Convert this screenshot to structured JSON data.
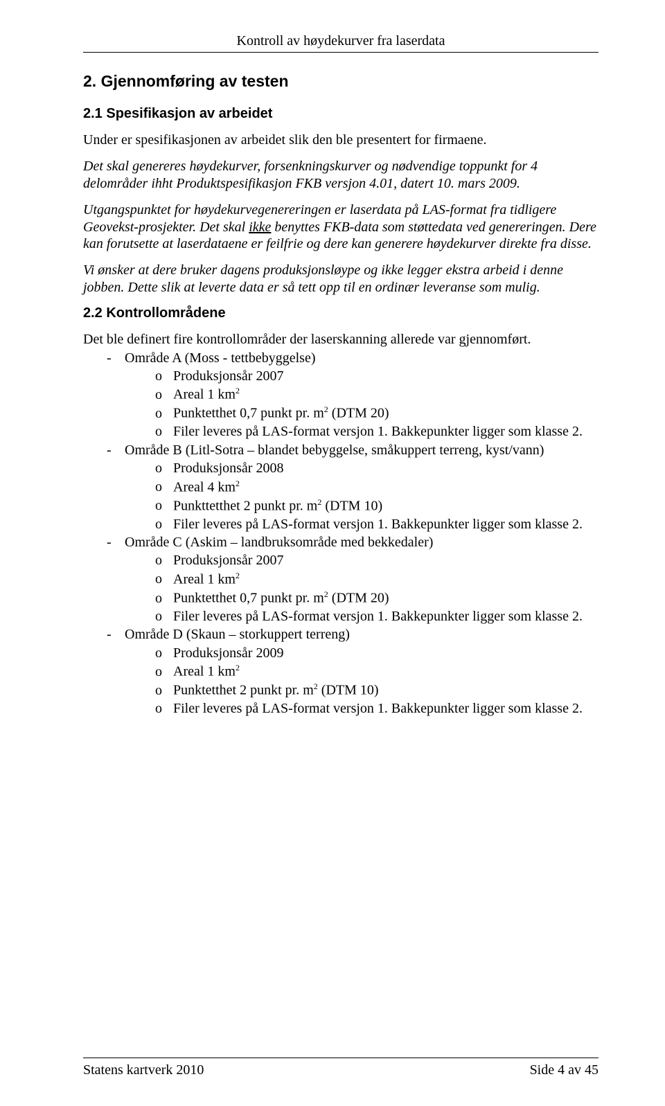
{
  "header": {
    "title": "Kontroll av høydekurver fra laserdata"
  },
  "section2": {
    "heading": "2. Gjennomføring av testen",
    "sub1": {
      "heading": "2.1 Spesifikasjon av arbeidet",
      "intro": "Under er spesifikasjonen av arbeidet slik den ble presentert for firmaene.",
      "p1": "Det skal genereres høydekurver, forsenkningskurver og nødvendige toppunkt for 4 delområder ihht Produktspesifikasjon FKB versjon 4.01, datert 10. mars 2009.",
      "p2a": "Utgangspunktet for høydekurvegenereringen er laserdata på LAS-format fra tidligere Geovekst-prosjekter. Det skal ",
      "p2_ikke": "ikke",
      "p2b": " benyttes FKB-data som støttedata ved genereringen. Dere kan forutsette at laserdataene er feilfrie og dere kan generere høydekurver direkte fra disse.",
      "p3": "Vi ønsker at dere bruker dagens produksjonsløype og ikke legger ekstra arbeid i denne jobben. Dette slik at leverte data er så tett opp til en ordinær leveranse som mulig."
    },
    "sub2": {
      "heading": "2.2 Kontrollområdene",
      "intro": "Det ble definert fire kontrollområder der laserskanning allerede var gjennomført.",
      "areas": [
        {
          "title": "Område A (Moss - tettbebyggelse)",
          "items": [
            {
              "pre": "Produksjonsår 2007",
              "sup": ""
            },
            {
              "pre": "Areal 1 km",
              "sup": "2"
            },
            {
              "pre": "Punktetthet 0,7 punkt pr. m",
              "sup": "2",
              "post": " (DTM 20)"
            },
            {
              "pre": "Filer leveres på LAS-format versjon 1. Bakkepunkter ligger som klasse 2.",
              "sup": ""
            }
          ]
        },
        {
          "title": "Område B (Litl-Sotra – blandet bebyggelse, småkuppert terreng, kyst/vann)",
          "items": [
            {
              "pre": "Produksjonsår 2008",
              "sup": ""
            },
            {
              "pre": "Areal 4 km",
              "sup": "2"
            },
            {
              "pre": "Punkttetthet 2 punkt pr. m",
              "sup": "2",
              "post": " (DTM 10)"
            },
            {
              "pre": "Filer leveres på LAS-format versjon 1. Bakkepunkter ligger som klasse 2.",
              "sup": ""
            }
          ]
        },
        {
          "title": "Område C (Askim – landbruksområde med bekkedaler)",
          "items": [
            {
              "pre": "Produksjonsår 2007",
              "sup": ""
            },
            {
              "pre": "Areal 1 km",
              "sup": "2"
            },
            {
              "pre": "Punktetthet 0,7 punkt pr. m",
              "sup": "2",
              "post": " (DTM 20)"
            },
            {
              "pre": "Filer leveres på LAS-format versjon 1. Bakkepunkter ligger som klasse 2.",
              "sup": ""
            }
          ]
        },
        {
          "title": "Område D (Skaun – storkuppert terreng)",
          "items": [
            {
              "pre": "Produksjonsår 2009",
              "sup": ""
            },
            {
              "pre": "Areal 1 km",
              "sup": "2"
            },
            {
              "pre": "Punktetthet 2 punkt pr. m",
              "sup": "2",
              "post": " (DTM 10)"
            },
            {
              "pre": "Filer leveres på LAS-format versjon 1. Bakkepunkter ligger som klasse 2.",
              "sup": ""
            }
          ]
        }
      ]
    }
  },
  "footer": {
    "left": "Statens kartverk 2010",
    "right": "Side 4 av 45"
  }
}
